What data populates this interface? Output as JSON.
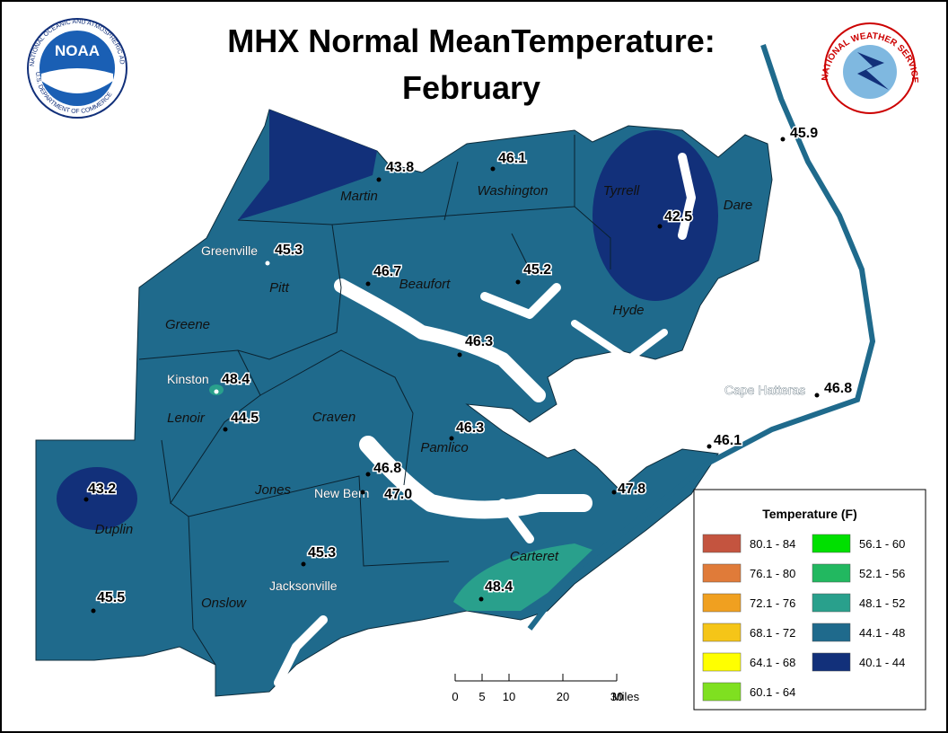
{
  "title": [
    "MHX Normal MeanTemperature:",
    "February"
  ],
  "logos": {
    "noaa": "NOAA",
    "noaa_ring": "NATIONAL OCEANIC AND ATMOSPHERIC ADMINISTRATION",
    "noaa_ring_bottom": "U.S. DEPARTMENT OF COMMERCE",
    "nws": "NATIONAL WEATHER SERVICE"
  },
  "counties": [
    "Martin",
    "Washington",
    "Tyrrell",
    "Dare",
    "Pitt",
    "Beaufort",
    "Hyde",
    "Greene",
    "Lenoir",
    "Craven",
    "Pamlico",
    "Jones",
    "Duplin",
    "Onslow",
    "Carteret"
  ],
  "cities": [
    "Greenville",
    "Kinston",
    "Cape Hatteras",
    "New Bern",
    "Jacksonville"
  ],
  "stations": [
    {
      "value": 43.8
    },
    {
      "value": 46.1
    },
    {
      "value": 42.5
    },
    {
      "value": 45.9
    },
    {
      "value": 45.3
    },
    {
      "value": 46.7
    },
    {
      "value": 45.2
    },
    {
      "value": 46.3
    },
    {
      "value": 48.4
    },
    {
      "value": 46.8
    },
    {
      "value": 44.5
    },
    {
      "value": 46.3
    },
    {
      "value": 46.1
    },
    {
      "value": 43.2
    },
    {
      "value": 46.8
    },
    {
      "value": 47,
      "label": "47.0"
    },
    {
      "value": 47.8
    },
    {
      "value": 45.3
    },
    {
      "value": 48.4
    },
    {
      "value": 45.5
    }
  ],
  "legend": {
    "title": "Temperature (F)",
    "items": [
      {
        "label": "80.1 - 84",
        "color": "#c4543f"
      },
      {
        "label": "76.1 - 80",
        "color": "#e07b39"
      },
      {
        "label": "72.1 - 76",
        "color": "#f0a020"
      },
      {
        "label": "68.1 - 72",
        "color": "#f5c518"
      },
      {
        "label": "64.1 - 68",
        "color": "#ffff00"
      },
      {
        "label": "60.1 - 64",
        "color": "#7fe020"
      },
      {
        "label": "56.1 - 60",
        "color": "#00e000"
      },
      {
        "label": "52.1 - 56",
        "color": "#22b860"
      },
      {
        "label": "48.1 - 52",
        "color": "#29a08c"
      },
      {
        "label": "44.1 - 48",
        "color": "#1f6a8c"
      },
      {
        "label": "40.1 - 44",
        "color": "#12307a"
      }
    ]
  },
  "scale_bar": {
    "ticks": [
      0,
      5,
      10,
      20,
      30
    ],
    "unit": "Miles"
  }
}
